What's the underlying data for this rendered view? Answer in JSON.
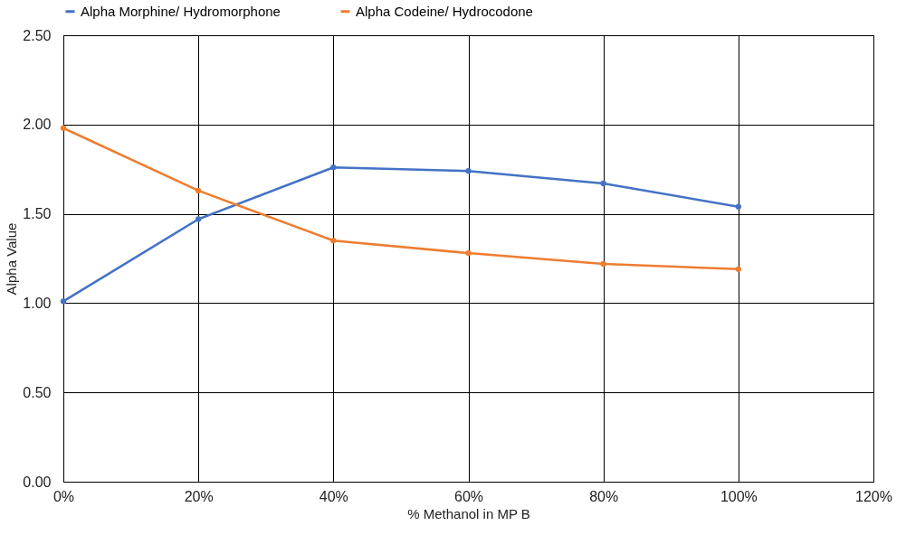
{
  "chart_data": {
    "type": "line",
    "xlabel": "% Methanol in MP B",
    "ylabel": "Alpha Value",
    "x": [
      0,
      20,
      40,
      60,
      80,
      100
    ],
    "series": [
      {
        "name": "Alpha Morphine/ Hydromorphone",
        "color": "#4472c4",
        "values": [
          1.01,
          1.47,
          1.76,
          1.74,
          1.67,
          1.54
        ]
      },
      {
        "name": "Alpha Codeine/ Hydrocodone",
        "color": "#ed7d31",
        "values": [
          1.98,
          1.63,
          1.35,
          1.28,
          1.22,
          1.19
        ]
      }
    ],
    "xlim": [
      0,
      120
    ],
    "xticks": [
      {
        "value": 0,
        "label": "0%"
      },
      {
        "value": 20,
        "label": "20%"
      },
      {
        "value": 40,
        "label": "40%"
      },
      {
        "value": 60,
        "label": "60%"
      },
      {
        "value": 80,
        "label": "80%"
      },
      {
        "value": 100,
        "label": "100%"
      },
      {
        "value": 120,
        "label": "120%"
      }
    ],
    "ylim": [
      0,
      2.5
    ],
    "yticks": [
      {
        "value": 0,
        "label": "0.00"
      },
      {
        "value": 0.5,
        "label": "0.50"
      },
      {
        "value": 1,
        "label": "1.00"
      },
      {
        "value": 1.5,
        "label": "1.50"
      },
      {
        "value": 2,
        "label": "2.00"
      },
      {
        "value": 2.5,
        "label": "2.50"
      }
    ],
    "grid": true,
    "legend": "top",
    "marker": "circle",
    "line_style": "solid"
  }
}
